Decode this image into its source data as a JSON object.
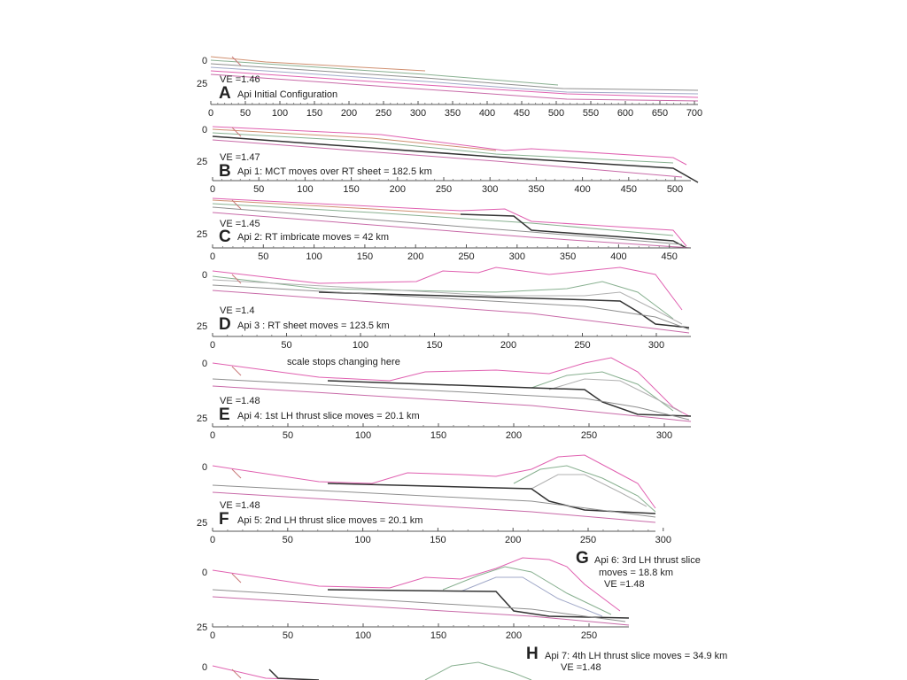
{
  "colors": {
    "topo": "#e060b0",
    "base": "#c86aa8",
    "fault": "#333333",
    "strat": [
      "#8f8f8f",
      "#b0b0b0",
      "#d09070",
      "#88b090",
      "#a0a8c8"
    ],
    "ramp": "#c87878",
    "axis": "#555555"
  },
  "panels": [
    {
      "letter": "A",
      "ve": "VE =1.46",
      "caption": "Api Initial Configuration",
      "depth_labels": [
        "0",
        "25"
      ],
      "x_ticks": [
        "0",
        "50",
        "100",
        "150",
        "200",
        "250",
        "300",
        "350",
        "400",
        "450",
        "500",
        "550",
        "600",
        "650",
        "700"
      ]
    },
    {
      "letter": "B",
      "ve": "VE =1.47",
      "caption": "Api 1:  MCT moves over RT sheet = 182.5 km",
      "depth_labels": [
        "0",
        "25"
      ],
      "x_ticks": [
        "0",
        "50",
        "100",
        "150",
        "200",
        "250",
        "300",
        "350",
        "400",
        "450",
        "500"
      ]
    },
    {
      "letter": "C",
      "ve": "VE =1.45",
      "caption": "Api 2: RT imbricate moves = 42 km",
      "depth_labels": [
        "25"
      ],
      "x_ticks": [
        "0",
        "50",
        "100",
        "150",
        "200",
        "250",
        "300",
        "350",
        "400",
        "450"
      ]
    },
    {
      "letter": "D",
      "ve": "VE =1.4",
      "caption": "Api 3 : RT sheet moves = 123.5 km",
      "depth_labels": [
        "0",
        "25"
      ],
      "x_ticks": [
        "0",
        "50",
        "100",
        "150",
        "200",
        "250",
        "300"
      ]
    },
    {
      "letter": "E",
      "ve": "VE =1.48",
      "caption": "Api 4:  1st LH thrust slice moves = 20.1 km",
      "depth_labels": [
        "0",
        "25"
      ],
      "x_ticks": [
        "0",
        "50",
        "100",
        "150",
        "200",
        "250",
        "300"
      ],
      "note": "scale stops changing here"
    },
    {
      "letter": "F",
      "ve": "VE =1.48",
      "caption": "Api 5:  2nd LH thrust slice moves = 20.1 km",
      "depth_labels": [
        "0",
        "25"
      ],
      "x_ticks": [
        "0",
        "50",
        "100",
        "150",
        "200",
        "250",
        "300"
      ]
    },
    {
      "letter": "G",
      "ve": "VE =1.48",
      "caption": "Api 6:  3rd LH thrust slice",
      "caption2": "moves = 18.8 km",
      "depth_labels": [
        "0",
        "25"
      ],
      "x_ticks": [
        "0",
        "50",
        "100",
        "150",
        "200",
        "250"
      ]
    },
    {
      "letter": "H",
      "ve": "VE =1.48",
      "caption": "Api 7:  4th LH thrust slice moves = 34.9 km",
      "depth_labels": [
        "0"
      ],
      "x_ticks": []
    }
  ]
}
